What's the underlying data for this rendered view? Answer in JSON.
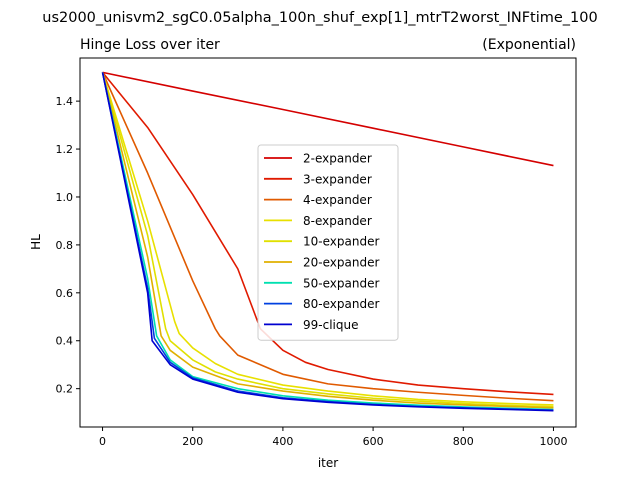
{
  "figure": {
    "suptitle": "us2000_unisvm2_sgC0.05alpha_100n_shuf_exp[1]_mtrT2worst_INFtime_100"
  },
  "chart_data": {
    "type": "line",
    "title_left": "Hinge Loss over iter",
    "title_right": "(Exponential)",
    "xlabel": "iter",
    "ylabel": "HL",
    "xlim": [
      -50,
      1050
    ],
    "ylim": [
      0.04,
      1.58
    ],
    "xticks": [
      0,
      200,
      400,
      600,
      800,
      1000
    ],
    "yticks": [
      0.2,
      0.4,
      0.6,
      0.8,
      1.0,
      1.2,
      1.4
    ],
    "ytick_labels": [
      "0.2",
      "0.4",
      "0.6",
      "0.8",
      "1.0",
      "1.2",
      "1.4"
    ],
    "grid": false,
    "legend_position": "center",
    "series": [
      {
        "name": "2-expander",
        "color": "#d40000",
        "x": [
          0,
          200,
          400,
          600,
          800,
          1000
        ],
        "y": [
          1.52,
          1.442,
          1.365,
          1.287,
          1.209,
          1.131
        ]
      },
      {
        "name": "3-expander",
        "color": "#e01a00",
        "x": [
          0,
          100,
          200,
          300,
          350,
          400,
          450,
          500,
          600,
          700,
          800,
          900,
          1000
        ],
        "y": [
          1.52,
          1.29,
          1.01,
          0.7,
          0.45,
          0.36,
          0.31,
          0.28,
          0.24,
          0.215,
          0.2,
          0.187,
          0.176
        ]
      },
      {
        "name": "4-expander",
        "color": "#e05a00",
        "x": [
          0,
          100,
          200,
          250,
          260,
          300,
          400,
          500,
          600,
          700,
          800,
          900,
          1000
        ],
        "y": [
          1.52,
          1.1,
          0.65,
          0.45,
          0.42,
          0.34,
          0.26,
          0.22,
          0.2,
          0.185,
          0.172,
          0.16,
          0.15
        ]
      },
      {
        "name": "8-expander",
        "color": "#e8e000",
        "x": [
          0,
          100,
          160,
          170,
          200,
          250,
          300,
          400,
          500,
          600,
          700,
          800,
          900,
          1000
        ],
        "y": [
          1.52,
          0.9,
          0.48,
          0.43,
          0.37,
          0.305,
          0.26,
          0.215,
          0.19,
          0.17,
          0.155,
          0.145,
          0.138,
          0.132
        ]
      },
      {
        "name": "10-expander",
        "color": "#e0e000",
        "x": [
          0,
          100,
          140,
          150,
          200,
          250,
          300,
          400,
          500,
          600,
          700,
          800,
          900,
          1000
        ],
        "y": [
          1.52,
          0.84,
          0.45,
          0.4,
          0.32,
          0.27,
          0.24,
          0.2,
          0.178,
          0.16,
          0.148,
          0.138,
          0.13,
          0.125
        ]
      },
      {
        "name": "20-expander",
        "color": "#e0b000",
        "x": [
          0,
          100,
          130,
          150,
          200,
          300,
          400,
          500,
          600,
          700,
          800,
          900,
          1000
        ],
        "y": [
          1.52,
          0.75,
          0.42,
          0.36,
          0.29,
          0.22,
          0.19,
          0.168,
          0.152,
          0.14,
          0.132,
          0.126,
          0.12
        ]
      },
      {
        "name": "50-expander",
        "color": "#00e0b0",
        "x": [
          0,
          100,
          120,
          150,
          200,
          300,
          400,
          500,
          600,
          700,
          800,
          900,
          1000
        ],
        "y": [
          1.52,
          0.66,
          0.42,
          0.32,
          0.25,
          0.2,
          0.17,
          0.152,
          0.14,
          0.131,
          0.124,
          0.118,
          0.113
        ]
      },
      {
        "name": "80-expander",
        "color": "#0040e0",
        "x": [
          0,
          100,
          115,
          150,
          200,
          300,
          400,
          500,
          600,
          700,
          800,
          900,
          1000
        ],
        "y": [
          1.52,
          0.62,
          0.41,
          0.31,
          0.245,
          0.19,
          0.162,
          0.146,
          0.134,
          0.126,
          0.12,
          0.115,
          0.11
        ]
      },
      {
        "name": "99-clique",
        "color": "#0000d0",
        "x": [
          0,
          100,
          110,
          150,
          200,
          300,
          400,
          500,
          600,
          700,
          800,
          900,
          1000
        ],
        "y": [
          1.52,
          0.6,
          0.4,
          0.3,
          0.24,
          0.185,
          0.158,
          0.143,
          0.132,
          0.124,
          0.118,
          0.113,
          0.108
        ]
      }
    ]
  }
}
